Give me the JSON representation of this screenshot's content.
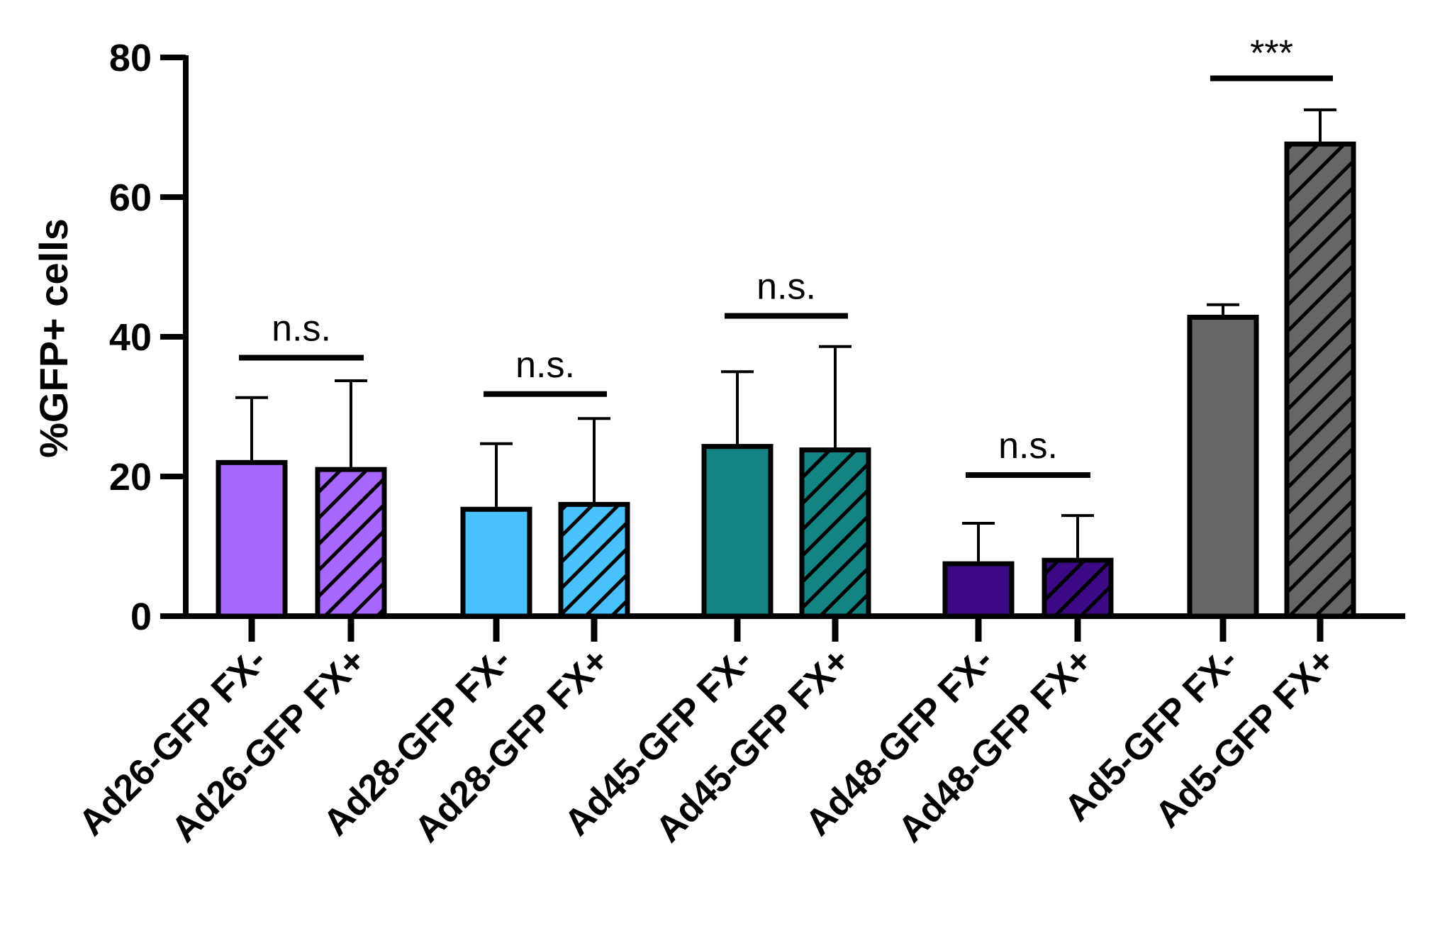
{
  "chart_data": {
    "type": "bar",
    "title": "",
    "xlabel": "",
    "ylabel": "%GFP+ cells",
    "ylim": [
      0,
      80
    ],
    "yticks": [
      0,
      20,
      40,
      60,
      80
    ],
    "grid": false,
    "categories": [
      "Ad26-GFP FX-",
      "Ad26-GFP FX+",
      "Ad28-GFP FX-",
      "Ad28-GFP FX+",
      "Ad45-GFP FX-",
      "Ad45-GFP FX+",
      "Ad48-GFP FX-",
      "Ad48-GFP FX+",
      "Ad5-GFP FX-",
      "Ad5-GFP FX+"
    ],
    "values": [
      22,
      21,
      15.3,
      16,
      24.3,
      23.8,
      7.5,
      8,
      42.8,
      67.6
    ],
    "error_upper": [
      31.3,
      33.7,
      24.7,
      28.3,
      35,
      38.6,
      13.3,
      14.4,
      44.6,
      72.5
    ],
    "colors": [
      "#a966ff",
      "#a966ff",
      "#4ac1fa",
      "#4ac1fa",
      "#138383",
      "#138383",
      "#3c0a84",
      "#3c0a84",
      "#666666",
      "#666666"
    ],
    "hatched": [
      false,
      true,
      false,
      true,
      false,
      true,
      false,
      true,
      false,
      true
    ],
    "significance": [
      {
        "pair": [
          0,
          1
        ],
        "label": "n.s.",
        "level": 37
      },
      {
        "pair": [
          2,
          3
        ],
        "label": "n.s.",
        "level": 31.8
      },
      {
        "pair": [
          4,
          5
        ],
        "label": "n.s.",
        "level": 43
      },
      {
        "pair": [
          6,
          7
        ],
        "label": "n.s.",
        "level": 20.2
      },
      {
        "pair": [
          8,
          9
        ],
        "label": "***",
        "level": 77
      }
    ]
  }
}
